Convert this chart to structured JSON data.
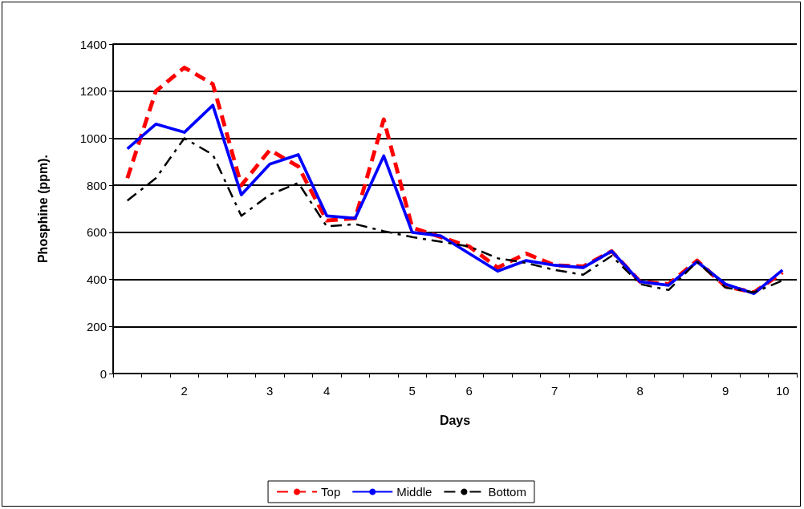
{
  "chart_data": {
    "type": "line",
    "xlabel": "Days",
    "ylabel": "Phosphine (ppm).",
    "categories": [
      null,
      null,
      "2",
      null,
      null,
      "3",
      null,
      "4",
      null,
      null,
      "5",
      null,
      "6",
      null,
      null,
      "7",
      null,
      null,
      "8",
      null,
      null,
      "9",
      null,
      "10"
    ],
    "ylim": [
      0,
      1400
    ],
    "yticks": [
      0,
      200,
      400,
      600,
      800,
      1000,
      1200,
      1400
    ],
    "grid": "y",
    "legend": "bottom",
    "marker": "none",
    "series": [
      {
        "name": "Top",
        "color": "#ff0000",
        "line_style": "dashed",
        "values": [
          830,
          1200,
          1300,
          1230,
          800,
          950,
          880,
          650,
          660,
          1080,
          620,
          580,
          540,
          450,
          510,
          460,
          455,
          520,
          390,
          380,
          480,
          370,
          345,
          430
        ]
      },
      {
        "name": "Middle",
        "color": "#0000ff",
        "line_style": "solid",
        "values": [
          955,
          1060,
          1025,
          1140,
          760,
          890,
          930,
          670,
          660,
          925,
          600,
          585,
          510,
          435,
          480,
          460,
          450,
          520,
          390,
          375,
          475,
          380,
          340,
          440
        ]
      },
      {
        "name": "Bottom",
        "color": "#000000",
        "line_style": "dotted",
        "values": [
          735,
          830,
          1000,
          930,
          670,
          760,
          810,
          625,
          635,
          605,
          580,
          560,
          540,
          490,
          470,
          440,
          420,
          500,
          380,
          355,
          475,
          365,
          345,
          395
        ]
      }
    ]
  }
}
